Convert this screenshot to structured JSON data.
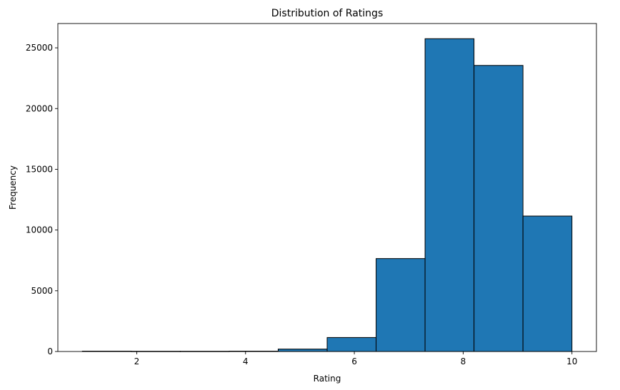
{
  "chart_data": {
    "type": "bar",
    "title": "Distribution of Ratings",
    "xlabel": "Rating",
    "ylabel": "Frequency",
    "bin_edges": [
      1.0,
      1.9,
      2.8,
      3.7,
      4.6,
      5.5,
      6.4,
      7.3,
      8.2,
      9.1,
      10.0
    ],
    "values": [
      30,
      20,
      20,
      30,
      200,
      1150,
      7650,
      25750,
      23550,
      11150
    ],
    "xlim": [
      0.55,
      10.45
    ],
    "ylim": [
      0,
      27000
    ],
    "xticks": [
      2,
      4,
      6,
      8,
      10
    ],
    "yticks": [
      0,
      5000,
      10000,
      15000,
      20000,
      25000
    ],
    "bar_color": "#1f77b4",
    "edge_color": "#000000",
    "grid": false,
    "legend": false
  }
}
